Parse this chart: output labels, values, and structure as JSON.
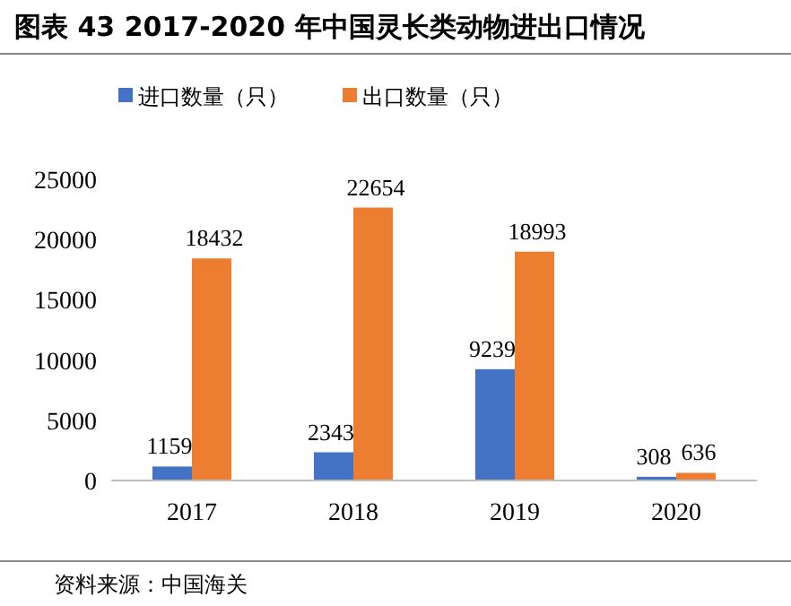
{
  "chart_data": {
    "type": "bar",
    "title": "图表 43 2017-2020 年中国灵长类动物进出口情况",
    "categories": [
      "2017",
      "2018",
      "2019",
      "2020"
    ],
    "series": [
      {
        "name": "进口数量（只）",
        "color": "#4472c4",
        "values": [
          1159,
          2343,
          9239,
          308
        ]
      },
      {
        "name": "出口数量（只）",
        "color": "#ed7d31",
        "values": [
          18432,
          22654,
          18993,
          636
        ]
      }
    ],
    "ylim": [
      0,
      25000
    ],
    "yticks": [
      0,
      5000,
      10000,
      15000,
      20000,
      25000
    ],
    "data_labels": true,
    "legend": "top left",
    "grid": false,
    "annotations": [
      "资料来源：中国海关"
    ]
  }
}
